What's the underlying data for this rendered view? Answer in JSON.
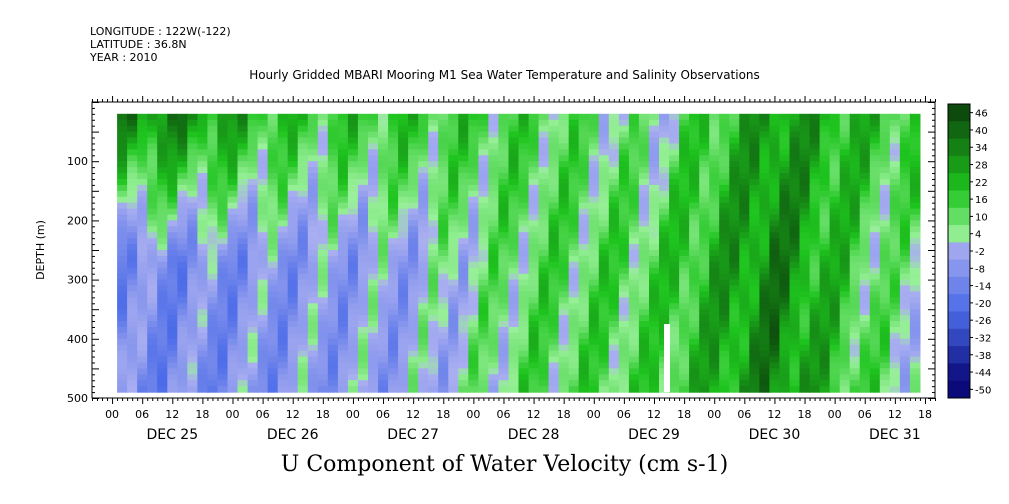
{
  "header": {
    "longitude": "LONGITUDE : 122W(-122)",
    "latitude": "LATITUDE : 36.8N",
    "year": "YEAR : 2010"
  },
  "chart_data": {
    "type": "heatmap",
    "title": "Hourly Gridded MBARI Mooring M1 Sea Water Temperature and Salinity Observations",
    "subtitle": "U Component of Water Velocity (cm s-1)",
    "ylabel": "DEPTH (m)",
    "xlabel": "",
    "ylim": [
      500,
      0
    ],
    "y_ticks": [
      100,
      200,
      300,
      400,
      500
    ],
    "x_hour_labels": [
      "00",
      "06",
      "12",
      "18",
      "00",
      "06",
      "12",
      "18",
      "00",
      "06",
      "12",
      "18",
      "00",
      "06",
      "12",
      "18",
      "00",
      "06",
      "12",
      "18",
      "00",
      "06",
      "12",
      "18",
      "00",
      "06",
      "12",
      "18"
    ],
    "x_day_labels": [
      "DEC 25",
      "DEC 26",
      "DEC 27",
      "DEC 28",
      "DEC 29",
      "DEC 30",
      "DEC 31"
    ],
    "x_range_hours_from_dec25_00": [
      -4,
      164
    ],
    "data_range_hours_from_dec25_00": [
      1,
      161
    ],
    "data_depth_range": [
      20,
      490
    ],
    "colorbar": {
      "labels": [
        "46",
        "40",
        "34",
        "28",
        "22",
        "16",
        "10",
        "4",
        "-2",
        "-8",
        "-14",
        "-20",
        "-26",
        "-32",
        "-38",
        "-44",
        "-50"
      ],
      "levels": [
        46,
        40,
        34,
        28,
        22,
        16,
        10,
        4,
        -2,
        -8,
        -14,
        -20,
        -26,
        -32,
        -38,
        -44,
        -50
      ],
      "colors": {
        "pos_strong": "#0b3d0b",
        "pos_mid": "#1ec41e",
        "pos_light": "#98f098",
        "neg_light": "#a9aef0",
        "neg_mid": "#4b6be8",
        "neg_strong": "#0a0a7a"
      }
    },
    "day_profile": [
      {
        "day": "DEC 25",
        "surface": 30,
        "deep": -14
      },
      {
        "day": "DEC 26",
        "surface": 14,
        "deep": -10
      },
      {
        "day": "DEC 27",
        "surface": 14,
        "deep": -6
      },
      {
        "day": "DEC 28",
        "surface": 10,
        "deep": 8
      },
      {
        "day": "DEC 29",
        "surface": 0,
        "deep": 10
      },
      {
        "day": "DEC 30",
        "surface": 26,
        "deep": 30
      },
      {
        "day": "DEC 31",
        "surface": 14,
        "deep": 2
      }
    ]
  }
}
